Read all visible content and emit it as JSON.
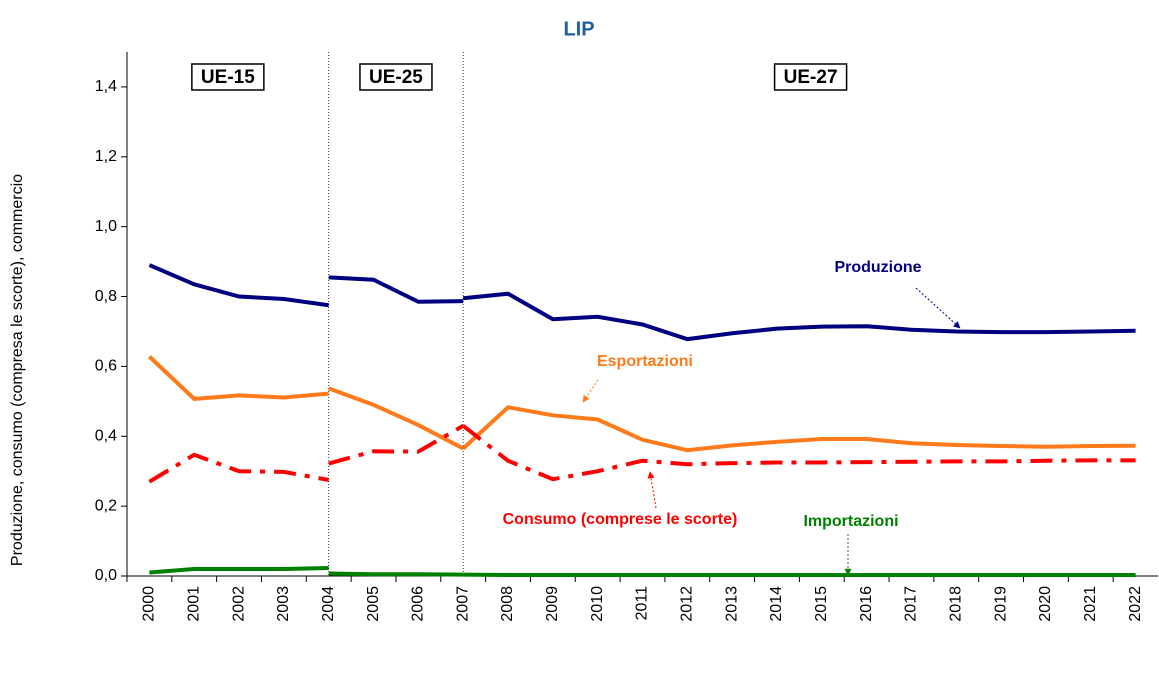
{
  "chart_data": {
    "type": "line",
    "title": "LIP",
    "y_label": "Produzione, consumo (compresa le scorte), commercio",
    "categories": [
      "2000",
      "2001",
      "2002",
      "2003",
      "2004",
      "2005",
      "2006",
      "2007",
      "2008",
      "2009",
      "2010",
      "2011",
      "2012",
      "2013",
      "2014",
      "2015",
      "2016",
      "2017",
      "2018",
      "2019",
      "2020",
      "2021",
      "2022"
    ],
    "periods": [
      "UE-15",
      "UE-25",
      "UE-27"
    ],
    "ylim": [
      0,
      1.5
    ],
    "yticks": [
      {
        "value": 0,
        "label": "0,0"
      },
      {
        "value": 0.2,
        "label": "0,2"
      },
      {
        "value": 0.4,
        "label": "0,4"
      },
      {
        "value": 0.6,
        "label": "0,6"
      },
      {
        "value": 0.8,
        "label": "0,8"
      },
      {
        "value": 1.0,
        "label": "1,0"
      },
      {
        "value": 1.2,
        "label": "1,2"
      },
      {
        "value": 1.4,
        "label": "1,4"
      }
    ],
    "series": [
      {
        "name": "Produzione",
        "color": "#000080",
        "dash": "solid",
        "periods": [
          {
            "values": [
              0.89,
              0.835,
              0.8,
              0.793,
              0.775,
              null,
              null,
              null,
              null,
              null,
              null,
              null,
              null,
              null,
              null,
              null,
              null,
              null,
              null,
              null,
              null,
              null,
              null
            ]
          },
          {
            "values": [
              null,
              null,
              null,
              null,
              0.855,
              0.848,
              0.785,
              0.787,
              null,
              null,
              null,
              null,
              null,
              null,
              null,
              null,
              null,
              null,
              null,
              null,
              null,
              null,
              null
            ]
          },
          {
            "values": [
              null,
              null,
              null,
              null,
              null,
              null,
              null,
              0.795,
              0.808,
              0.735,
              0.742,
              0.72,
              0.678,
              0.695,
              0.708,
              0.714,
              0.715,
              0.705,
              0.7,
              0.698,
              0.698,
              0.7,
              0.702
            ]
          }
        ]
      },
      {
        "name": "Esportazioni",
        "color": "#ff7a1a",
        "dash": "solid",
        "periods": [
          {
            "values": [
              0.628,
              0.507,
              0.517,
              0.511,
              0.522,
              null,
              null,
              null,
              null,
              null,
              null,
              null,
              null,
              null,
              null,
              null,
              null,
              null,
              null,
              null,
              null,
              null,
              null
            ]
          },
          {
            "values": [
              null,
              null,
              null,
              null,
              0.537,
              0.49,
              0.432,
              0.365,
              null,
              null,
              null,
              null,
              null,
              null,
              null,
              null,
              null,
              null,
              null,
              null,
              null,
              null,
              null
            ]
          },
          {
            "values": [
              null,
              null,
              null,
              null,
              null,
              null,
              null,
              0.365,
              0.483,
              0.46,
              0.448,
              0.39,
              0.36,
              0.374,
              0.384,
              0.392,
              0.392,
              0.38,
              0.375,
              0.372,
              0.37,
              0.372,
              0.373
            ]
          }
        ]
      },
      {
        "name": "Consumo (comprese le scorte)",
        "color": "#ff0000",
        "dash": "dashdot",
        "periods": [
          {
            "values": [
              0.27,
              0.347,
              0.3,
              0.298,
              0.275,
              null,
              null,
              null,
              null,
              null,
              null,
              null,
              null,
              null,
              null,
              null,
              null,
              null,
              null,
              null,
              null,
              null,
              null
            ]
          },
          {
            "values": [
              null,
              null,
              null,
              null,
              0.322,
              0.357,
              0.356,
              0.43,
              null,
              null,
              null,
              null,
              null,
              null,
              null,
              null,
              null,
              null,
              null,
              null,
              null,
              null,
              null
            ]
          },
          {
            "values": [
              null,
              null,
              null,
              null,
              null,
              null,
              null,
              0.43,
              0.33,
              0.277,
              0.3,
              0.33,
              0.32,
              0.323,
              0.325,
              0.325,
              0.326,
              0.327,
              0.328,
              0.328,
              0.33,
              0.331,
              0.331
            ]
          }
        ]
      },
      {
        "name": "Importazioni",
        "color": "#008000",
        "dash": "solid",
        "periods": [
          {
            "values": [
              0.01,
              0.02,
              0.02,
              0.02,
              0.023,
              null,
              null,
              null,
              null,
              null,
              null,
              null,
              null,
              null,
              null,
              null,
              null,
              null,
              null,
              null,
              null,
              null,
              null
            ]
          },
          {
            "values": [
              null,
              null,
              null,
              null,
              0.007,
              0.005,
              0.005,
              0.004,
              null,
              null,
              null,
              null,
              null,
              null,
              null,
              null,
              null,
              null,
              null,
              null,
              null,
              null,
              null
            ]
          },
          {
            "values": [
              null,
              null,
              null,
              null,
              null,
              null,
              null,
              0.004,
              0.003,
              0.003,
              0.003,
              0.003,
              0.003,
              0.003,
              0.003,
              0.003,
              0.003,
              0.003,
              0.003,
              0.003,
              0.003,
              0.003,
              0.003
            ]
          }
        ]
      }
    ]
  }
}
